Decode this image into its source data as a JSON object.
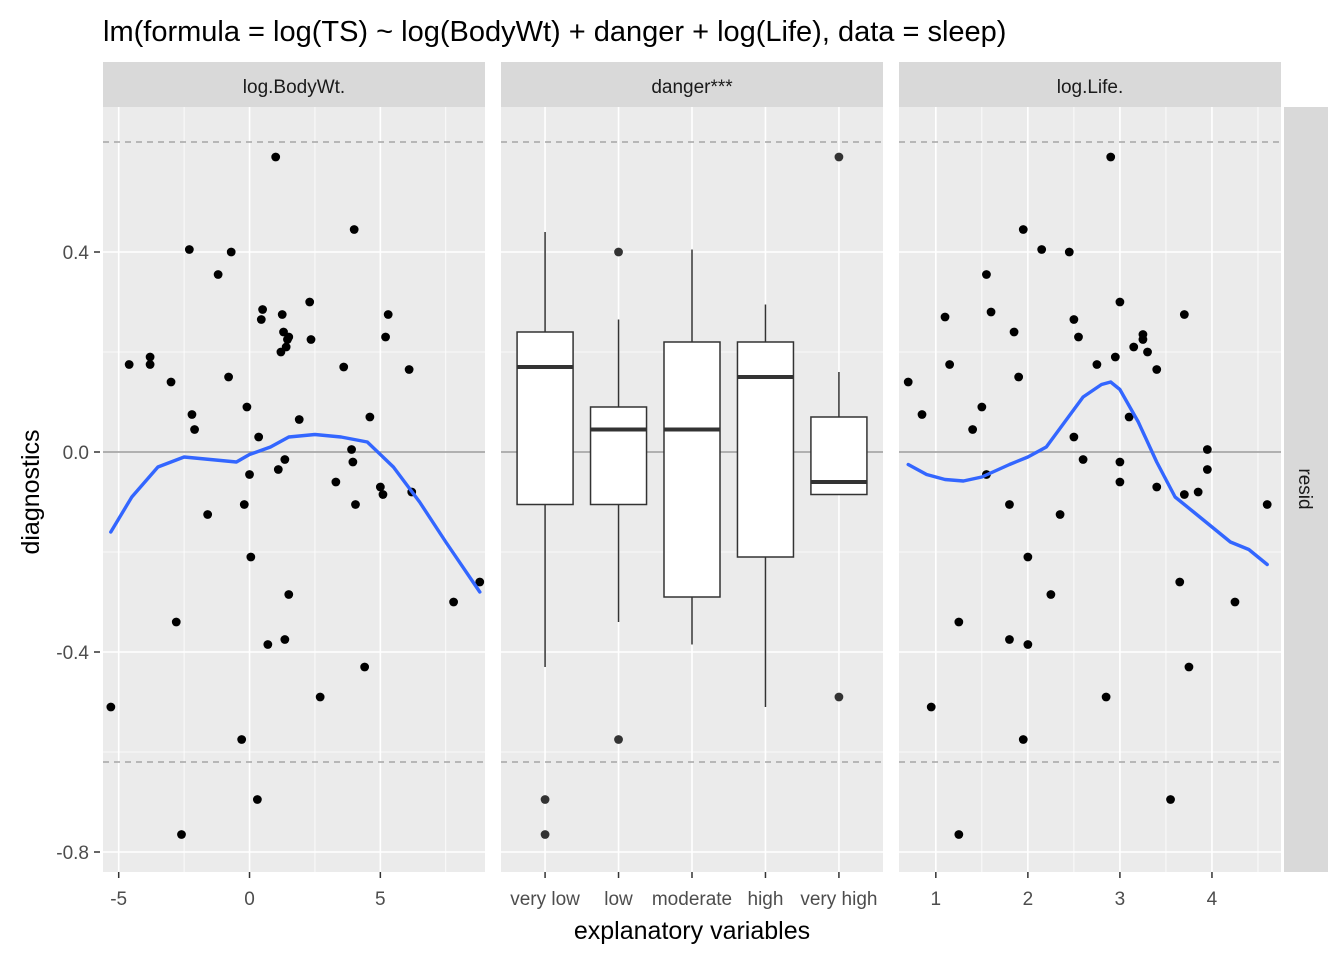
{
  "chart_data": {
    "type": "scatter",
    "title": "lm(formula = log(TS) ~ log(BodyWt) + danger + log(Life), data = sleep)",
    "xlabel": "explanatory variables",
    "ylabel": "diagnostics",
    "row_strip": "resid",
    "ylim": [
      -0.84,
      0.69
    ],
    "y_ticks": [
      {
        "value": -0.8,
        "label": "-0.8"
      },
      {
        "value": -0.4,
        "label": "-0.4"
      },
      {
        "value": 0.0,
        "label": "0.0"
      },
      {
        "value": 0.4,
        "label": "0.4"
      }
    ],
    "reference_lines": {
      "zero": 0.0,
      "dashed": [
        -0.62,
        0.62
      ]
    },
    "colors": {
      "panel_bg": "#ebebeb",
      "grid": "#ffffff",
      "strip_bg": "#d9d9d9",
      "point": "#000000",
      "smooth": "#3366ff",
      "zero_line": "#999999",
      "dashed_line": "#a6a6a6"
    },
    "panels": [
      {
        "strip": "log.BodyWt.",
        "type": "scatter",
        "xlim": [
          -5.6,
          9.0
        ],
        "x_ticks": [
          {
            "value": -5,
            "label": "-5"
          },
          {
            "value": 0,
            "label": "0"
          },
          {
            "value": 5,
            "label": "5"
          }
        ],
        "points": [
          [
            -5.3,
            -0.51
          ],
          [
            -4.6,
            0.175
          ],
          [
            -3.8,
            0.19
          ],
          [
            -3.8,
            0.175
          ],
          [
            -3.0,
            0.14
          ],
          [
            -2.8,
            -0.34
          ],
          [
            -2.6,
            -0.765
          ],
          [
            -2.3,
            0.405
          ],
          [
            -2.2,
            0.075
          ],
          [
            -2.1,
            0.045
          ],
          [
            -1.6,
            -0.125
          ],
          [
            -1.2,
            0.355
          ],
          [
            -0.8,
            0.15
          ],
          [
            -0.7,
            0.4
          ],
          [
            -0.3,
            -0.575
          ],
          [
            -0.2,
            -0.105
          ],
          [
            -0.1,
            0.09
          ],
          [
            0.0,
            -0.045
          ],
          [
            0.05,
            -0.21
          ],
          [
            0.3,
            -0.695
          ],
          [
            0.35,
            0.03
          ],
          [
            0.45,
            0.265
          ],
          [
            0.5,
            0.285
          ],
          [
            0.7,
            -0.385
          ],
          [
            1.0,
            0.59
          ],
          [
            1.1,
            -0.035
          ],
          [
            1.2,
            0.2
          ],
          [
            1.25,
            0.275
          ],
          [
            1.3,
            0.24
          ],
          [
            1.35,
            -0.015
          ],
          [
            1.35,
            -0.375
          ],
          [
            1.4,
            0.21
          ],
          [
            1.45,
            0.225
          ],
          [
            1.5,
            -0.285
          ],
          [
            1.5,
            0.23
          ],
          [
            1.9,
            0.065
          ],
          [
            2.3,
            0.3
          ],
          [
            2.35,
            0.225
          ],
          [
            2.7,
            -0.49
          ],
          [
            3.3,
            -0.06
          ],
          [
            3.6,
            0.17
          ],
          [
            3.9,
            0.005
          ],
          [
            3.95,
            -0.02
          ],
          [
            4.0,
            0.445
          ],
          [
            4.05,
            -0.105
          ],
          [
            4.4,
            -0.43
          ],
          [
            4.6,
            0.07
          ],
          [
            5.0,
            -0.07
          ],
          [
            5.1,
            -0.085
          ],
          [
            5.2,
            0.23
          ],
          [
            5.3,
            0.275
          ],
          [
            6.1,
            0.165
          ],
          [
            6.2,
            -0.08
          ],
          [
            7.8,
            -0.3
          ],
          [
            8.8,
            -0.26
          ]
        ],
        "smooth": [
          [
            -5.3,
            -0.16
          ],
          [
            -4.5,
            -0.09
          ],
          [
            -3.5,
            -0.03
          ],
          [
            -2.5,
            -0.01
          ],
          [
            -1.5,
            -0.015
          ],
          [
            -0.5,
            -0.02
          ],
          [
            0.0,
            -0.005
          ],
          [
            0.8,
            0.01
          ],
          [
            1.5,
            0.03
          ],
          [
            2.5,
            0.035
          ],
          [
            3.5,
            0.03
          ],
          [
            4.5,
            0.02
          ],
          [
            5.5,
            -0.03
          ],
          [
            6.5,
            -0.1
          ],
          [
            7.5,
            -0.18
          ],
          [
            8.8,
            -0.28
          ]
        ]
      },
      {
        "strip": "danger***",
        "type": "boxplot",
        "categories": [
          "very low",
          "low",
          "moderate",
          "high",
          "very high"
        ],
        "boxes": [
          {
            "q1": -0.105,
            "median": 0.17,
            "q3": 0.24,
            "whisker_low": -0.43,
            "whisker_high": 0.44,
            "outliers": [
              -0.695,
              -0.765
            ]
          },
          {
            "q1": -0.105,
            "median": 0.045,
            "q3": 0.09,
            "whisker_low": -0.34,
            "whisker_high": 0.265,
            "outliers": [
              0.4,
              -0.575
            ]
          },
          {
            "q1": -0.29,
            "median": 0.045,
            "q3": 0.22,
            "whisker_low": -0.385,
            "whisker_high": 0.405,
            "outliers": []
          },
          {
            "q1": -0.21,
            "median": 0.15,
            "q3": 0.22,
            "whisker_low": -0.51,
            "whisker_high": 0.295,
            "outliers": []
          },
          {
            "q1": -0.085,
            "median": -0.06,
            "q3": 0.07,
            "whisker_low": -0.085,
            "whisker_high": 0.16,
            "outliers": [
              0.59,
              -0.49
            ]
          }
        ]
      },
      {
        "strip": "log.Life.",
        "type": "scatter",
        "xlim": [
          0.6,
          4.75
        ],
        "x_ticks": [
          {
            "value": 1,
            "label": "1"
          },
          {
            "value": 2,
            "label": "2"
          },
          {
            "value": 3,
            "label": "3"
          },
          {
            "value": 4,
            "label": "4"
          }
        ],
        "points": [
          [
            0.7,
            0.14
          ],
          [
            0.85,
            0.075
          ],
          [
            0.95,
            -0.51
          ],
          [
            1.1,
            0.27
          ],
          [
            1.15,
            0.175
          ],
          [
            1.25,
            -0.34
          ],
          [
            1.25,
            -0.765
          ],
          [
            1.4,
            0.045
          ],
          [
            1.5,
            0.09
          ],
          [
            1.55,
            -0.045
          ],
          [
            1.55,
            0.355
          ],
          [
            1.6,
            0.28
          ],
          [
            1.8,
            -0.105
          ],
          [
            1.8,
            -0.375
          ],
          [
            1.85,
            0.24
          ],
          [
            1.9,
            0.15
          ],
          [
            1.95,
            0.445
          ],
          [
            1.95,
            -0.575
          ],
          [
            2.0,
            -0.385
          ],
          [
            2.0,
            -0.21
          ],
          [
            2.15,
            0.405
          ],
          [
            2.25,
            -0.285
          ],
          [
            2.35,
            -0.125
          ],
          [
            2.45,
            0.4
          ],
          [
            2.5,
            0.265
          ],
          [
            2.5,
            0.03
          ],
          [
            2.55,
            0.23
          ],
          [
            2.6,
            -0.015
          ],
          [
            2.75,
            0.175
          ],
          [
            2.85,
            -0.49
          ],
          [
            2.9,
            0.59
          ],
          [
            2.95,
            0.19
          ],
          [
            3.0,
            0.3
          ],
          [
            3.0,
            -0.02
          ],
          [
            3.0,
            -0.06
          ],
          [
            3.1,
            0.07
          ],
          [
            3.15,
            0.21
          ],
          [
            3.25,
            0.225
          ],
          [
            3.25,
            0.235
          ],
          [
            3.3,
            0.2
          ],
          [
            3.4,
            0.165
          ],
          [
            3.4,
            -0.07
          ],
          [
            3.55,
            -0.695
          ],
          [
            3.65,
            -0.26
          ],
          [
            3.7,
            -0.085
          ],
          [
            3.7,
            0.275
          ],
          [
            3.75,
            -0.43
          ],
          [
            3.85,
            -0.08
          ],
          [
            3.95,
            0.005
          ],
          [
            3.95,
            -0.035
          ],
          [
            4.25,
            -0.3
          ],
          [
            4.6,
            -0.105
          ]
        ],
        "smooth": [
          [
            0.7,
            -0.025
          ],
          [
            0.9,
            -0.045
          ],
          [
            1.1,
            -0.055
          ],
          [
            1.3,
            -0.058
          ],
          [
            1.5,
            -0.05
          ],
          [
            1.8,
            -0.025
          ],
          [
            2.0,
            -0.01
          ],
          [
            2.2,
            0.01
          ],
          [
            2.4,
            0.06
          ],
          [
            2.6,
            0.11
          ],
          [
            2.8,
            0.135
          ],
          [
            2.9,
            0.14
          ],
          [
            3.0,
            0.125
          ],
          [
            3.2,
            0.06
          ],
          [
            3.4,
            -0.02
          ],
          [
            3.6,
            -0.09
          ],
          [
            3.8,
            -0.12
          ],
          [
            4.0,
            -0.15
          ],
          [
            4.2,
            -0.18
          ],
          [
            4.4,
            -0.195
          ],
          [
            4.6,
            -0.225
          ]
        ]
      }
    ]
  }
}
